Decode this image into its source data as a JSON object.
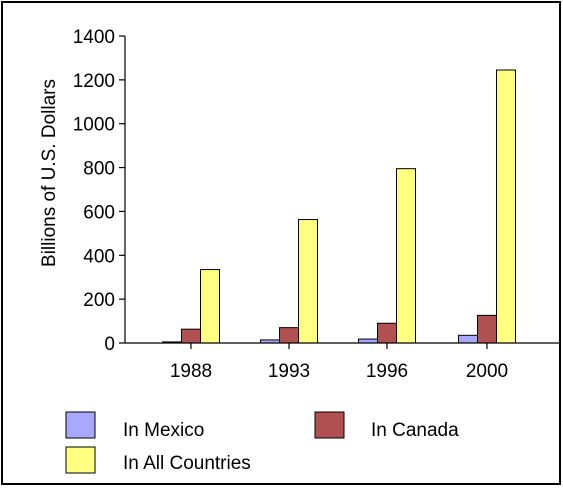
{
  "chart_data": {
    "type": "bar",
    "categories": [
      "1988",
      "1993",
      "1996",
      "2000"
    ],
    "series": [
      {
        "name": "In Mexico",
        "values": [
          5,
          14,
          18,
          35
        ],
        "color": "#a8a8ff"
      },
      {
        "name": "In Canada",
        "values": [
          63,
          70,
          90,
          126
        ],
        "color": "#b05050"
      },
      {
        "name": "In All Countries",
        "values": [
          335,
          563,
          795,
          1245
        ],
        "color": "#ffff80"
      }
    ],
    "title": "",
    "xlabel": "",
    "ylabel": "Billions of U.S. Dollars",
    "ylim": [
      0,
      1400
    ],
    "yticks": [
      "0",
      "200",
      "400",
      "600",
      "800",
      "1000",
      "1200",
      "1400"
    ],
    "grid": false,
    "legend_position": "bottom"
  }
}
